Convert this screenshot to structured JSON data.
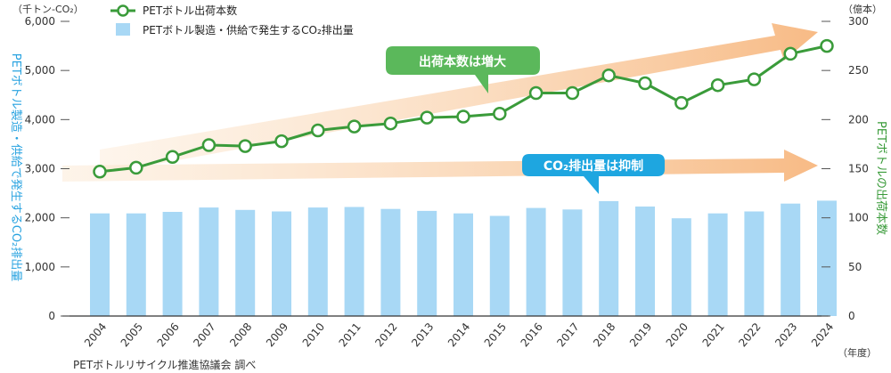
{
  "chart_data": {
    "type": "bar+line",
    "categories": [
      "2004",
      "2005",
      "2006",
      "2007",
      "2008",
      "2009",
      "2010",
      "2011",
      "2012",
      "2013",
      "2014",
      "2015",
      "2016",
      "2017",
      "2018",
      "2019",
      "2020",
      "2021",
      "2022",
      "2023",
      "2024"
    ],
    "series": [
      {
        "name": "PETボトル製造・供給で発生するCO₂排出量",
        "type": "bar",
        "axis": "left",
        "color": "#a8d8f5",
        "values": [
          2090,
          2090,
          2120,
          2210,
          2160,
          2130,
          2210,
          2220,
          2180,
          2140,
          2090,
          2040,
          2200,
          2170,
          2340,
          2230,
          1990,
          2090,
          2130,
          2290,
          2350
        ]
      },
      {
        "name": "PETボトル出荷本数",
        "type": "line",
        "axis": "right",
        "color": "#3a9b3a",
        "values": [
          147,
          151,
          162,
          174,
          173,
          178,
          189,
          193,
          196,
          202,
          203,
          206,
          227,
          227,
          245,
          237,
          217,
          235,
          241,
          267,
          275
        ]
      }
    ],
    "left_axis": {
      "unit_label": "（千トン-CO₂）",
      "title": "PETボトル製造・供給で発生するCO₂排出量",
      "ylim": [
        0,
        6000
      ],
      "ticks": [
        "0",
        "1,000",
        "2,000",
        "3,000",
        "4,000",
        "5,000",
        "6,000"
      ]
    },
    "right_axis": {
      "unit_label": "（億本）",
      "title": "PETボトルの出荷本数",
      "ylim": [
        0,
        300
      ],
      "ticks": [
        "0",
        "50",
        "100",
        "150",
        "200",
        "250",
        "300"
      ]
    },
    "x_unit_label": "（年度）",
    "legend": {
      "position": "top-left",
      "items": [
        "PETボトル出荷本数",
        "PETボトル製造・供給で発生するCO₂排出量"
      ]
    },
    "annotations": [
      {
        "text": "出荷本数は増大",
        "color": "#5bb85b"
      },
      {
        "text": "CO₂排出量は抑制",
        "color": "#1ea6e0"
      }
    ],
    "source": "PETボトルリサイクル推進協議会 調べ",
    "grid": false
  }
}
